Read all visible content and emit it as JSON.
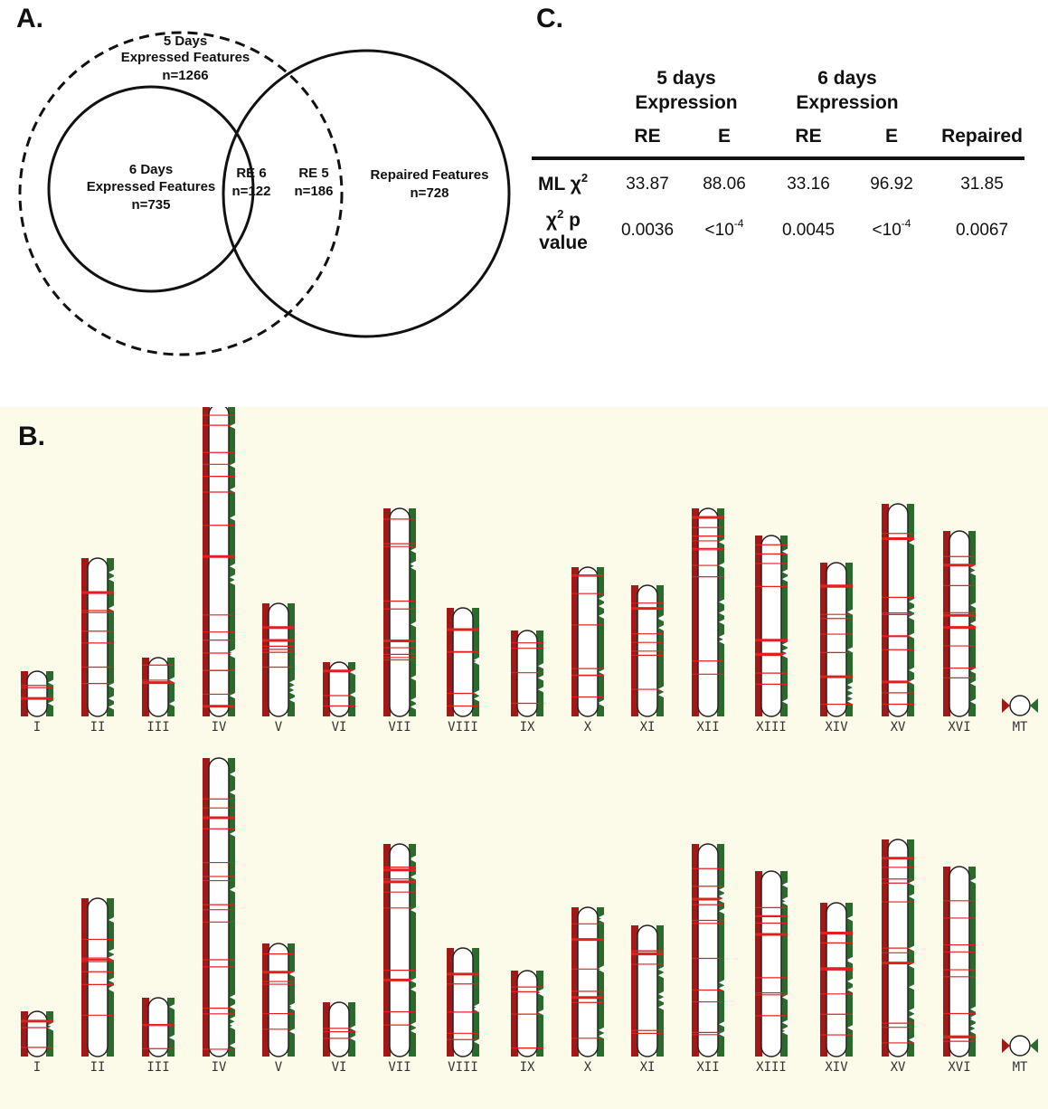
{
  "panelA": {
    "label": "A.",
    "sets": [
      {
        "lines": [
          "5 Days",
          "Expressed Features",
          "n=1266"
        ],
        "style": "dashed"
      },
      {
        "lines": [
          "6 Days",
          "Expressed Features",
          "n=735"
        ],
        "style": "solid"
      },
      {
        "lines": [
          "Repaired Features",
          "n=728"
        ],
        "style": "solid"
      }
    ],
    "regions": [
      {
        "lines": [
          "RE 6",
          "n=122"
        ]
      },
      {
        "lines": [
          "RE 5",
          "n=186"
        ]
      }
    ]
  },
  "panelB": {
    "label": "B.",
    "chromosomes": [
      "I",
      "II",
      "III",
      "IV",
      "V",
      "VI",
      "VII",
      "VIII",
      "IX",
      "X",
      "XI",
      "XII",
      "XIII",
      "XIV",
      "XV",
      "XVI",
      "MT"
    ],
    "colors": {
      "left_marker": "#a11818",
      "right_marker": "#2a6a2a",
      "feature_line": "#e02020",
      "background": "#fcfbea"
    }
  },
  "panelC": {
    "label": "C.",
    "group_headers": [
      {
        "line1": "5 days",
        "line2": "Expression"
      },
      {
        "line1": "6 days",
        "line2": "Expression"
      }
    ],
    "columns": [
      "RE",
      "E",
      "RE",
      "E",
      "Repaired"
    ],
    "rows": [
      {
        "label": "ML χ",
        "sup": "2",
        "values": [
          "33.87",
          "88.06",
          "33.16",
          "96.92",
          "31.85"
        ]
      },
      {
        "label_line1": "χ",
        "label_sup": "2",
        "label_line1b": " p",
        "label_line2": "value",
        "values": [
          "0.0036",
          "<10",
          "0.0045",
          "<10",
          "0.0067"
        ],
        "value_sups": [
          "",
          "-4",
          "",
          "-4",
          ""
        ]
      }
    ]
  }
}
